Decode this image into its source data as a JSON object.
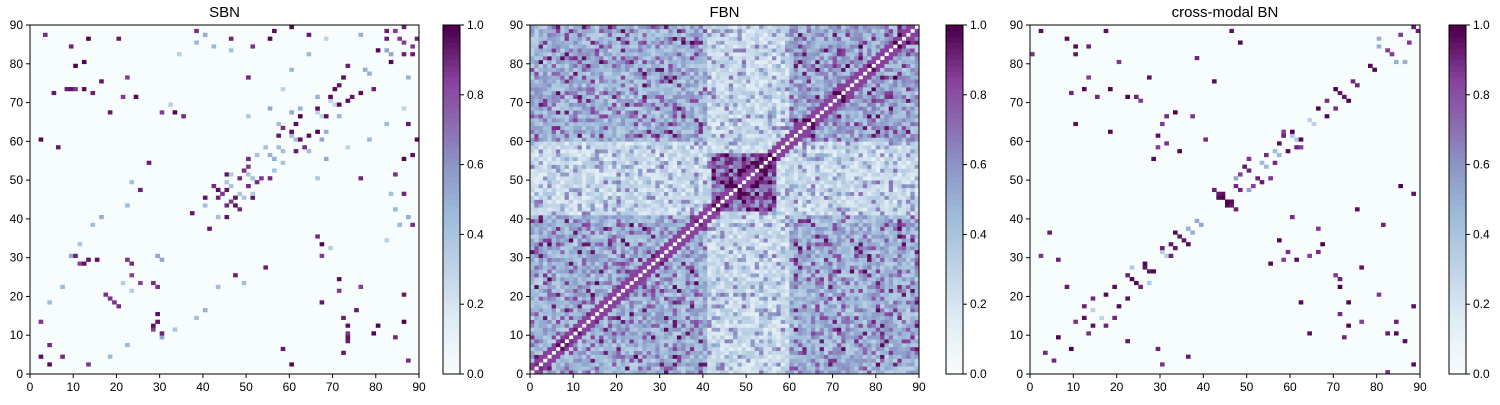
{
  "chart_data": [
    {
      "type": "heatmap",
      "title": "SBN",
      "xlim": [
        0,
        90
      ],
      "ylim": [
        0,
        90
      ],
      "matrix_size": 90,
      "xticks": [
        0,
        10,
        20,
        30,
        40,
        50,
        60,
        70,
        80,
        90
      ],
      "yticks": [
        0,
        10,
        20,
        30,
        40,
        50,
        60,
        70,
        80,
        90
      ],
      "colorbar": {
        "min": 0.0,
        "max": 1.0,
        "ticks": [
          "0.0",
          "0.2",
          "0.4",
          "0.6",
          "0.8",
          "1.0"
        ]
      },
      "pattern": "sparse",
      "symmetric": true,
      "strong_entries": [
        [
          43,
          45
        ],
        [
          44,
          46
        ],
        [
          45,
          47
        ],
        [
          46,
          44
        ],
        [
          47,
          43
        ],
        [
          42,
          48
        ],
        [
          48,
          50
        ],
        [
          49,
          52
        ],
        [
          50,
          48
        ],
        [
          51,
          45
        ],
        [
          52,
          49
        ],
        [
          53,
          50
        ],
        [
          61,
          57
        ],
        [
          62,
          60
        ],
        [
          63,
          58
        ],
        [
          64,
          61
        ],
        [
          66,
          62
        ],
        [
          68,
          66
        ],
        [
          69,
          71
        ],
        [
          70,
          73
        ],
        [
          72,
          76
        ],
        [
          73,
          79
        ],
        [
          74,
          71
        ],
        [
          80,
          83
        ],
        [
          82,
          86
        ],
        [
          84,
          88
        ],
        [
          86,
          85
        ],
        [
          88,
          82
        ],
        [
          89,
          86
        ],
        [
          8,
          73
        ],
        [
          10,
          73
        ],
        [
          12,
          73
        ],
        [
          14,
          72
        ],
        [
          16,
          75
        ],
        [
          21,
          71
        ],
        [
          24,
          71
        ],
        [
          30,
          67
        ],
        [
          33,
          67
        ],
        [
          35,
          66
        ],
        [
          40,
          45
        ],
        [
          41,
          37
        ],
        [
          22,
          22
        ],
        [
          23,
          25
        ],
        [
          24,
          24
        ],
        [
          26,
          26
        ],
        [
          28,
          23
        ],
        [
          29,
          22
        ],
        [
          12,
          28
        ],
        [
          15,
          29
        ],
        [
          18,
          19
        ],
        [
          17,
          20
        ],
        [
          58,
          6
        ],
        [
          60,
          2
        ],
        [
          67,
          18
        ],
        [
          72,
          5
        ],
        [
          73,
          9
        ],
        [
          76,
          22
        ],
        [
          79,
          10
        ],
        [
          86,
          13
        ],
        [
          88,
          38
        ],
        [
          13,
          2
        ],
        [
          30,
          10
        ],
        [
          29,
          13
        ],
        [
          28,
          11
        ],
        [
          4,
          7
        ],
        [
          2,
          4
        ],
        [
          3,
          87
        ],
        [
          9,
          84
        ],
        [
          12,
          80
        ],
        [
          20,
          86
        ],
        [
          56,
          88
        ],
        [
          60,
          89
        ],
        [
          64,
          87
        ],
        [
          86,
          46
        ],
        [
          84,
          51
        ],
        [
          86,
          55
        ],
        [
          55,
          50
        ],
        [
          27,
          54
        ],
        [
          25,
          47
        ],
        [
          76,
          50
        ]
      ],
      "weak_entries": [
        [
          21,
          23
        ],
        [
          25,
          25
        ],
        [
          27,
          27
        ],
        [
          30,
          29
        ],
        [
          32,
          32
        ],
        [
          35,
          35
        ],
        [
          38,
          38
        ],
        [
          41,
          41
        ],
        [
          43,
          40
        ],
        [
          46,
          48
        ],
        [
          50,
          51
        ],
        [
          53,
          53
        ],
        [
          55,
          56
        ],
        [
          57,
          58
        ],
        [
          59,
          59
        ],
        [
          61,
          60
        ],
        [
          63,
          63
        ],
        [
          66,
          67
        ],
        [
          69,
          70
        ],
        [
          72,
          72
        ],
        [
          75,
          75
        ],
        [
          77,
          78
        ],
        [
          80,
          80
        ],
        [
          83,
          82
        ],
        [
          85,
          85
        ],
        [
          49,
          45
        ],
        [
          51,
          46
        ],
        [
          56,
          52
        ],
        [
          58,
          54
        ],
        [
          64,
          57
        ],
        [
          68,
          62
        ],
        [
          71,
          66
        ],
        [
          50,
          66
        ],
        [
          55,
          68
        ],
        [
          60,
          67
        ],
        [
          67,
          30
        ],
        [
          69,
          32
        ],
        [
          14,
          38
        ],
        [
          16,
          40
        ],
        [
          22,
          43
        ],
        [
          23,
          49
        ],
        [
          4,
          18
        ],
        [
          7,
          22
        ],
        [
          9,
          30
        ],
        [
          11,
          33
        ],
        [
          40,
          87
        ],
        [
          42,
          84
        ],
        [
          73,
          58
        ],
        [
          78,
          60
        ],
        [
          82,
          64
        ],
        [
          86,
          68
        ],
        [
          87,
          76
        ],
        [
          34,
          82
        ],
        [
          38,
          85
        ],
        [
          46,
          83
        ]
      ]
    },
    {
      "type": "heatmap",
      "title": "FBN",
      "xlim": [
        0,
        90
      ],
      "ylim": [
        0,
        90
      ],
      "matrix_size": 90,
      "xticks": [
        0,
        10,
        20,
        30,
        40,
        50,
        60,
        70,
        80,
        90
      ],
      "yticks": [
        0,
        10,
        20,
        30,
        40,
        50,
        60,
        70,
        80,
        90
      ],
      "colorbar": {
        "min": 0.0,
        "max": 1.0,
        "ticks": [
          "0.0",
          "0.2",
          "0.4",
          "0.6",
          "0.8",
          "1.0"
        ]
      },
      "pattern": "dense",
      "symmetric": true,
      "strong_blocks": [
        {
          "rows": [
            42,
            56
          ],
          "cols": [
            42,
            56
          ],
          "level": 0.9
        },
        {
          "rows": [
            0,
            40
          ],
          "cols": [
            0,
            40
          ],
          "level": 0.55
        },
        {
          "rows": [
            0,
            40
          ],
          "cols": [
            60,
            90
          ],
          "level": 0.55
        },
        {
          "rows": [
            60,
            90
          ],
          "cols": [
            0,
            40
          ],
          "level": 0.55
        },
        {
          "rows": [
            60,
            90
          ],
          "cols": [
            60,
            90
          ],
          "level": 0.6
        }
      ]
    },
    {
      "type": "heatmap",
      "title": "cross-modal BN",
      "xlim": [
        0,
        90
      ],
      "ylim": [
        0,
        90
      ],
      "matrix_size": 90,
      "xticks": [
        0,
        10,
        20,
        30,
        40,
        50,
        60,
        70,
        80,
        90
      ],
      "yticks": [
        0,
        10,
        20,
        30,
        40,
        50,
        60,
        70,
        80,
        90
      ],
      "colorbar": {
        "min": 0.0,
        "max": 1.0,
        "ticks": [
          "0.0",
          "0.2",
          "0.4",
          "0.6",
          "0.8",
          "1.0"
        ]
      },
      "pattern": "sparse",
      "symmetric": true,
      "strong_entries": [
        [
          43,
          45
        ],
        [
          44,
          46
        ],
        [
          45,
          44
        ],
        [
          46,
          43
        ],
        [
          42,
          47
        ],
        [
          47,
          48
        ],
        [
          48,
          51
        ],
        [
          49,
          53
        ],
        [
          50,
          55
        ],
        [
          52,
          50
        ],
        [
          54,
          56
        ],
        [
          57,
          59
        ],
        [
          58,
          61
        ],
        [
          60,
          62
        ],
        [
          62,
          58
        ],
        [
          63,
          63
        ],
        [
          66,
          68
        ],
        [
          68,
          70
        ],
        [
          70,
          73
        ],
        [
          72,
          71
        ],
        [
          74,
          75
        ],
        [
          76,
          76
        ],
        [
          79,
          78
        ],
        [
          82,
          83
        ],
        [
          85,
          87
        ],
        [
          88,
          89
        ],
        [
          30,
          32
        ],
        [
          32,
          33
        ],
        [
          34,
          35
        ],
        [
          36,
          33
        ],
        [
          22,
          25
        ],
        [
          24,
          23
        ],
        [
          26,
          27
        ],
        [
          28,
          26
        ],
        [
          18,
          18
        ],
        [
          19,
          22
        ],
        [
          20,
          17
        ],
        [
          14,
          12
        ],
        [
          10,
          13
        ],
        [
          6,
          9
        ],
        [
          3,
          5
        ],
        [
          72,
          9
        ],
        [
          73,
          12
        ],
        [
          71,
          15
        ],
        [
          73,
          18
        ],
        [
          66,
          31
        ],
        [
          67,
          33
        ],
        [
          66,
          37
        ],
        [
          71,
          22
        ],
        [
          71,
          24
        ],
        [
          84,
          13
        ],
        [
          88,
          17
        ],
        [
          82,
          10
        ],
        [
          86,
          8
        ],
        [
          88,
          2
        ],
        [
          82,
          0
        ],
        [
          76,
          27
        ],
        [
          60,
          40
        ],
        [
          59,
          31
        ],
        [
          58,
          29
        ],
        [
          64,
          10
        ],
        [
          62,
          18
        ],
        [
          9,
          72
        ],
        [
          10,
          84
        ],
        [
          13,
          76
        ],
        [
          20,
          80
        ],
        [
          25,
          70
        ],
        [
          30,
          64
        ],
        [
          4,
          36
        ],
        [
          2,
          30
        ],
        [
          6,
          29
        ],
        [
          8,
          22
        ],
        [
          12,
          17
        ],
        [
          14,
          19
        ],
        [
          46,
          88
        ],
        [
          48,
          85
        ],
        [
          55,
          90
        ],
        [
          42,
          75
        ],
        [
          38,
          81
        ],
        [
          29,
          61
        ],
        [
          28,
          55
        ],
        [
          34,
          57
        ]
      ],
      "weak_entries": [
        [
          41,
          41
        ],
        [
          50,
          47
        ],
        [
          51,
          51
        ],
        [
          53,
          54
        ],
        [
          37,
          36
        ],
        [
          39,
          38
        ],
        [
          56,
          57
        ],
        [
          65,
          64
        ],
        [
          61,
          60
        ],
        [
          27,
          23
        ],
        [
          31,
          30
        ],
        [
          16,
          14
        ],
        [
          84,
          80
        ],
        [
          80,
          86
        ],
        [
          90,
          84
        ]
      ]
    }
  ]
}
